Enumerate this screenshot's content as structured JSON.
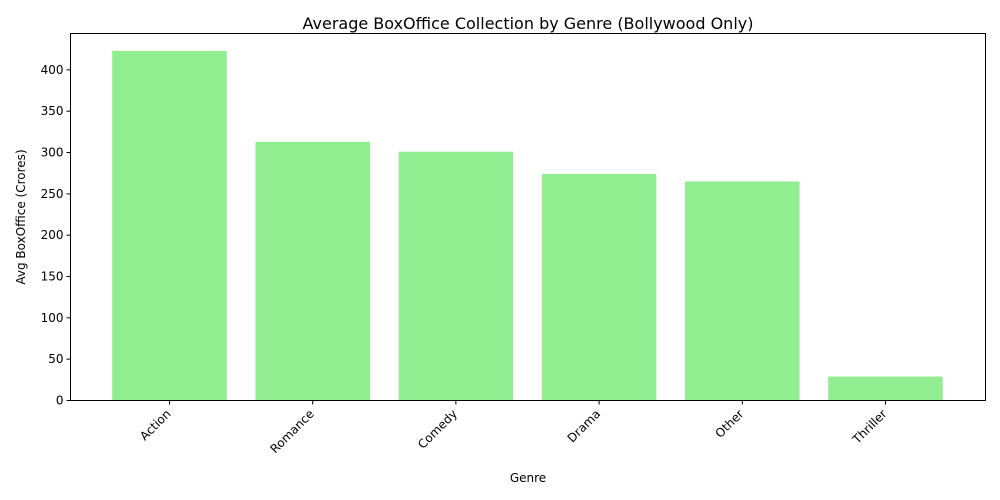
{
  "chart_data": {
    "type": "bar",
    "title": "Average BoxOffice Collection by Genre (Bollywood Only)",
    "xlabel": "Genre",
    "ylabel": "Avg BoxOffice (Crores)",
    "categories": [
      "Action",
      "Romance",
      "Comedy",
      "Drama",
      "Other",
      "Thriller"
    ],
    "values": [
      423,
      313,
      301,
      274,
      265,
      29
    ],
    "ylim": [
      0,
      444
    ],
    "yticks": [
      0,
      50,
      100,
      150,
      200,
      250,
      300,
      350,
      400
    ],
    "bar_color": "#90ee90",
    "grid": false,
    "tick_label_rotation": "45 degrees"
  }
}
